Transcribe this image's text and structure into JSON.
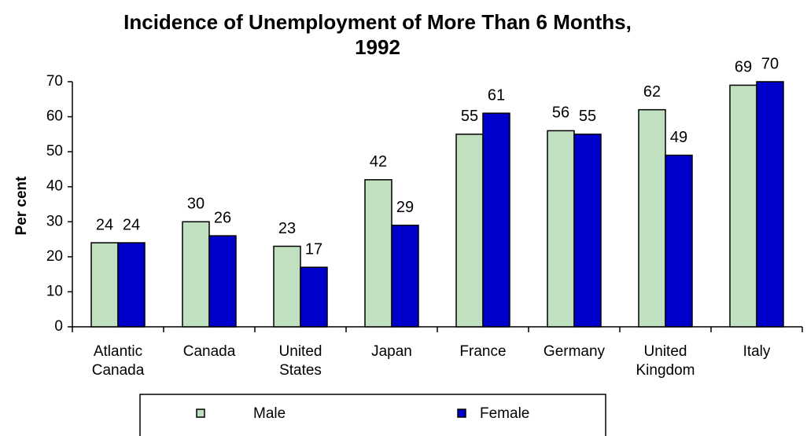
{
  "chart_data": {
    "type": "bar",
    "title": "Incidence of Unemployment of More Than 6 Months, 1992",
    "y_label": "Per cent",
    "categories": [
      "Atlantic Canada",
      "Canada",
      "United States",
      "Japan",
      "France",
      "Germany",
      "United Kingdom",
      "Italy"
    ],
    "series": [
      {
        "name": "Male",
        "color": "#c0e0c0",
        "values": [
          24,
          30,
          23,
          42,
          55,
          56,
          62,
          69
        ]
      },
      {
        "name": "Female",
        "color": "#0000cc",
        "values": [
          24,
          26,
          17,
          29,
          61,
          55,
          49,
          70
        ]
      }
    ],
    "ylim": [
      0,
      70
    ],
    "yticks": [
      0,
      10,
      20,
      30,
      40,
      50,
      60,
      70
    ],
    "legend": "bottom"
  }
}
